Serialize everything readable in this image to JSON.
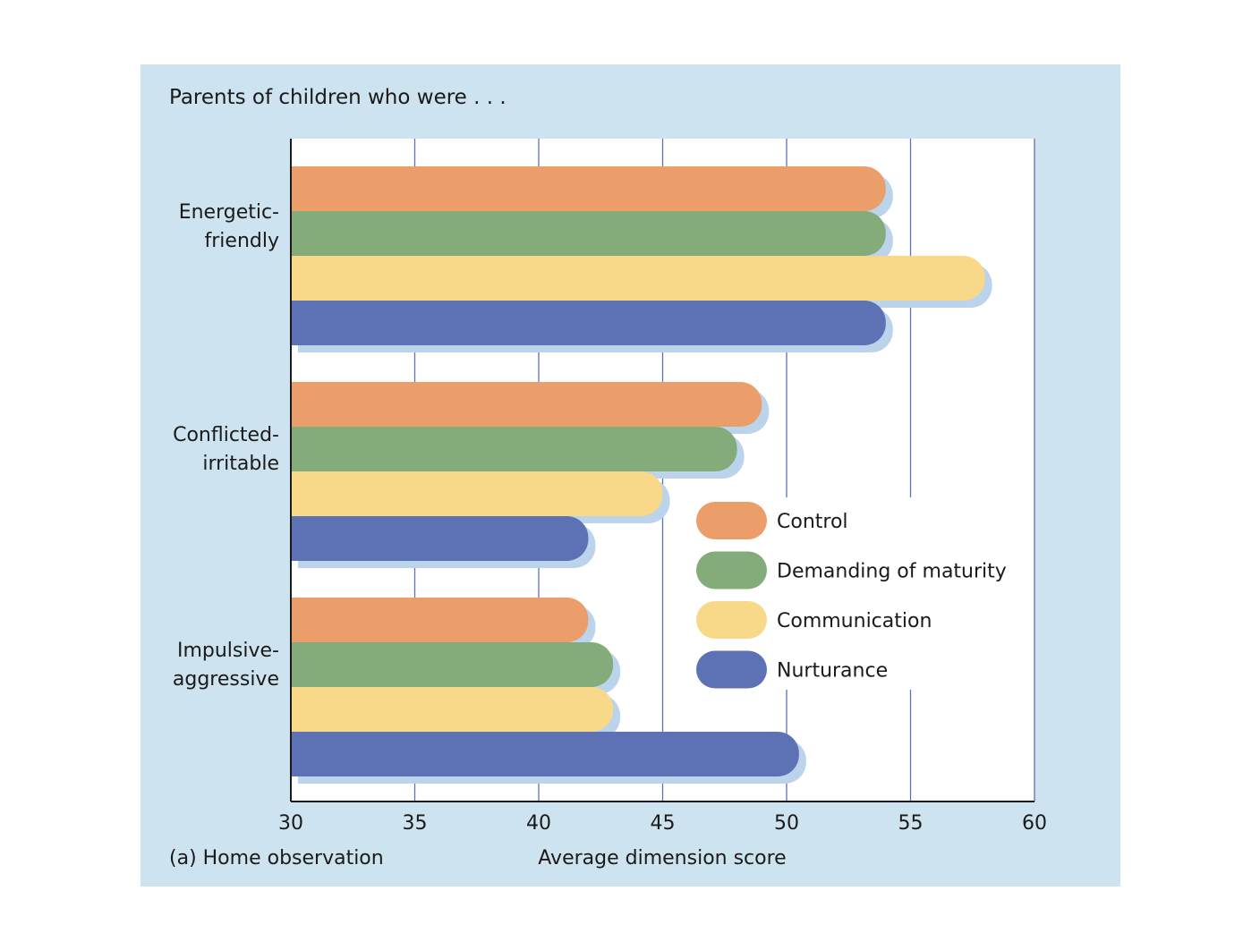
{
  "chart_data": {
    "type": "bar",
    "orientation": "horizontal",
    "title": "Parents of children who were . . .",
    "xlabel": "Average dimension score",
    "panel_label": "(a) Home observation",
    "xlim": [
      30,
      60
    ],
    "xticks": [
      30,
      35,
      40,
      45,
      50,
      55,
      60
    ],
    "grid": true,
    "legend_position": "right-center",
    "categories": [
      {
        "lines": [
          "Energetic-",
          "friendly"
        ]
      },
      {
        "lines": [
          "Conflicted-",
          "irritable"
        ]
      },
      {
        "lines": [
          "Impulsive-",
          "aggressive"
        ]
      }
    ],
    "series": [
      {
        "name": "Control",
        "color": "#eb9e6a",
        "values": [
          54,
          49,
          42
        ]
      },
      {
        "name": "Demanding of maturity",
        "color": "#84ac7a",
        "values": [
          54,
          48,
          43
        ]
      },
      {
        "name": "Communication",
        "color": "#f8d889",
        "values": [
          58,
          45,
          43
        ]
      },
      {
        "name": "Nurturance",
        "color": "#5c72b4",
        "values": [
          54,
          42,
          50.5
        ]
      }
    ],
    "shadow_color": "#bcd3ec",
    "grid_color": "#5c72b4"
  }
}
